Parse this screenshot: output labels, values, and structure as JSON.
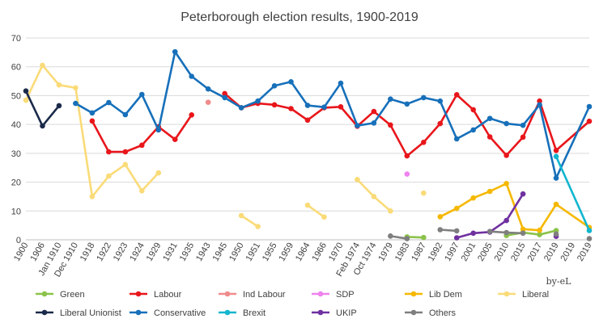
{
  "chart_data": {
    "type": "line",
    "title": "Peterborough election results, 1900-2019",
    "credit": "by-eL",
    "ylim": [
      0,
      70
    ],
    "yticks": [
      0,
      10,
      20,
      30,
      40,
      50,
      60,
      70
    ],
    "grid": "horizontal",
    "legend_position": "bottom",
    "categories": [
      "1900",
      "1906",
      "Jan 1910",
      "Dec 1910",
      "1918",
      "1922",
      "1923",
      "1924",
      "1929",
      "1931",
      "1935",
      "1943",
      "1945",
      "1950",
      "1951",
      "1955",
      "1959",
      "1964",
      "1966",
      "1970",
      "Feb 1974",
      "Oct 1974",
      "1979",
      "1983",
      "1987",
      "1992",
      "1997",
      "2001",
      "2005",
      "2010",
      "2015",
      "2017",
      "2019",
      "2019",
      "2019"
    ],
    "series": [
      {
        "name": "Green",
        "color": "#8BC34A",
        "segments": [
          [
            [
              23,
              1.0
            ],
            [
              24,
              0.8
            ]
          ],
          [
            [
              29,
              1.5
            ],
            [
              30,
              2.5
            ],
            [
              31,
              1.8
            ],
            [
              32,
              3.2
            ]
          ]
        ]
      },
      {
        "name": "Labour",
        "color": "#E8161B",
        "segments": [
          [
            [
              4,
              41.2
            ],
            [
              5,
              30.5
            ],
            [
              6,
              30.5
            ],
            [
              7,
              32.8
            ],
            [
              8,
              39.2
            ],
            [
              9,
              34.8
            ],
            [
              10,
              43.3
            ]
          ],
          [
            [
              12,
              50.7
            ],
            [
              13,
              45.8
            ],
            [
              14,
              47.3
            ],
            [
              15,
              46.8
            ],
            [
              16,
              45.5
            ],
            [
              17,
              41.5
            ],
            [
              18,
              45.8
            ],
            [
              19,
              46.1
            ],
            [
              20,
              39.4
            ],
            [
              21,
              44.5
            ],
            [
              22,
              39.8
            ],
            [
              23,
              29.1
            ],
            [
              24,
              33.8
            ],
            [
              25,
              40.3
            ],
            [
              26,
              50.3
            ],
            [
              27,
              45.1
            ],
            [
              28,
              35.7
            ],
            [
              29,
              29.3
            ],
            [
              30,
              35.6
            ],
            [
              31,
              48.1
            ],
            [
              32,
              31.0
            ],
            [
              34,
              41.1
            ]
          ]
        ]
      },
      {
        "name": "Ind Labour",
        "color": "#F08C8C",
        "segments": [
          [
            [
              11,
              47.7
            ]
          ]
        ]
      },
      {
        "name": "SDP",
        "color": "#EE82EE",
        "segments": [
          [
            [
              23,
              22.8
            ]
          ]
        ]
      },
      {
        "name": "Lib Dem",
        "color": "#F5B800",
        "segments": [
          [
            [
              25,
              8.0
            ],
            [
              26,
              10.9
            ],
            [
              27,
              14.5
            ],
            [
              28,
              16.8
            ],
            [
              29,
              19.5
            ],
            [
              30,
              3.7
            ],
            [
              31,
              3.3
            ],
            [
              32,
              12.3
            ],
            [
              34,
              4.3
            ]
          ]
        ]
      },
      {
        "name": "Liberal",
        "color": "#FADB78",
        "segments": [
          [
            [
              0,
              48.4
            ],
            [
              1,
              60.5
            ],
            [
              2,
              53.7
            ],
            [
              3,
              52.7
            ],
            [
              4,
              15.0
            ],
            [
              5,
              22.1
            ],
            [
              6,
              26.1
            ],
            [
              7,
              17.0
            ],
            [
              8,
              23.2
            ]
          ],
          [
            [
              13,
              8.4
            ],
            [
              14,
              4.6
            ]
          ],
          [
            [
              17,
              12.0
            ],
            [
              18,
              7.9
            ]
          ],
          [
            [
              20,
              20.9
            ],
            [
              21,
              15.0
            ],
            [
              22,
              10.0
            ]
          ],
          [
            [
              24,
              16.2
            ]
          ]
        ]
      },
      {
        "name": "Liberal Unionist",
        "color": "#1A2A4A",
        "segments": [
          [
            [
              0,
              51.6
            ],
            [
              1,
              39.5
            ],
            [
              2,
              46.5
            ]
          ]
        ]
      },
      {
        "name": "Conservative",
        "color": "#1770BA",
        "segments": [
          [
            [
              3,
              47.3
            ],
            [
              4,
              44.0
            ],
            [
              5,
              47.6
            ],
            [
              6,
              43.4
            ],
            [
              7,
              50.4
            ],
            [
              8,
              38.1
            ],
            [
              9,
              65.2
            ],
            [
              10,
              56.7
            ],
            [
              11,
              52.3
            ],
            [
              12,
              49.3
            ],
            [
              13,
              45.8
            ],
            [
              14,
              48.1
            ],
            [
              15,
              53.4
            ],
            [
              16,
              54.8
            ],
            [
              17,
              46.6
            ],
            [
              18,
              46.0
            ],
            [
              19,
              54.3
            ],
            [
              20,
              39.6
            ],
            [
              21,
              40.5
            ],
            [
              22,
              48.8
            ],
            [
              23,
              47.1
            ],
            [
              24,
              49.3
            ],
            [
              25,
              48.1
            ],
            [
              26,
              35.0
            ],
            [
              27,
              38.1
            ],
            [
              28,
              42.1
            ],
            [
              29,
              40.3
            ],
            [
              30,
              39.7
            ],
            [
              31,
              46.8
            ],
            [
              32,
              21.4
            ],
            [
              34,
              46.2
            ]
          ]
        ]
      },
      {
        "name": "Brexit",
        "color": "#12B6CF",
        "segments": [
          [
            [
              32,
              28.9
            ],
            [
              34,
              3.2
            ]
          ]
        ]
      },
      {
        "name": "UKIP",
        "color": "#7030A0",
        "segments": [
          [
            [
              26,
              0.7
            ],
            [
              27,
              2.3
            ],
            [
              28,
              2.7
            ],
            [
              29,
              6.7
            ],
            [
              30,
              15.9
            ]
          ],
          [
            [
              32,
              1.2
            ]
          ]
        ]
      },
      {
        "name": "Others",
        "color": "#7F7F7F",
        "segments": [
          [
            [
              22,
              1.3
            ],
            [
              23,
              0.4
            ]
          ],
          [
            [
              25,
              3.5
            ],
            [
              26,
              3.1
            ]
          ],
          [
            [
              28,
              2.9
            ],
            [
              29,
              2.5
            ],
            [
              30,
              2.3
            ]
          ],
          [
            [
              32,
              2.0
            ]
          ],
          [
            [
              34,
              0.4
            ]
          ]
        ]
      }
    ]
  }
}
